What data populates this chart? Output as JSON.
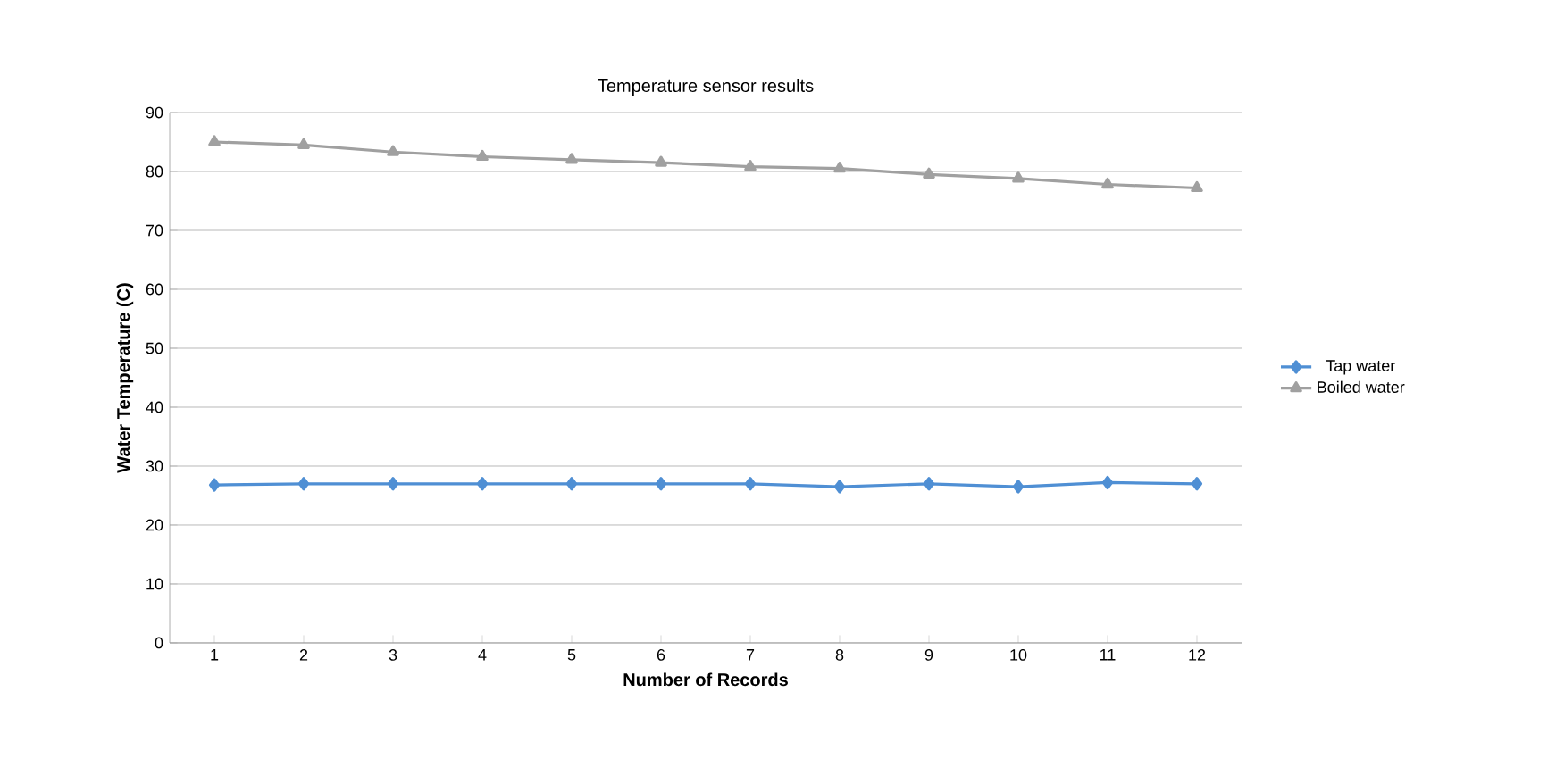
{
  "chart_data": {
    "type": "line",
    "title": "Temperature sensor results",
    "xlabel": "Number of Records",
    "ylabel": "Water Temperature (C)",
    "categories": [
      "1",
      "2",
      "3",
      "4",
      "5",
      "6",
      "7",
      "8",
      "9",
      "10",
      "11",
      "12"
    ],
    "series": [
      {
        "name": "Tap water",
        "color": "#4f8fd4",
        "marker": "diamond",
        "values": [
          26.8,
          27,
          27,
          27,
          27,
          27,
          27,
          26.5,
          27,
          26.5,
          27.2,
          27
        ]
      },
      {
        "name": "Boiled water",
        "color": "#a0a0a0",
        "marker": "triangle",
        "values": [
          85,
          84.5,
          83.3,
          82.5,
          82,
          81.5,
          80.8,
          80.5,
          79.5,
          78.8,
          77.8,
          77.2
        ]
      }
    ],
    "ylim": [
      0,
      90
    ],
    "yticks": [
      0,
      10,
      20,
      30,
      40,
      50,
      60,
      70,
      80,
      90
    ],
    "grid": "y",
    "legend": "right",
    "line_style": "solid"
  }
}
